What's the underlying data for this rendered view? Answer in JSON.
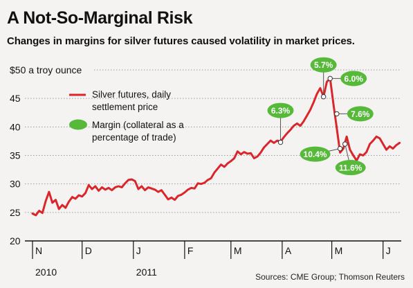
{
  "title": "A Not-So-Marginal Risk",
  "subtitle": "Changes in margins for silver futures caused volatility in market prices.",
  "source": "Sources: CME Group; Thomson Reuters",
  "colors": {
    "line": "#d9262b",
    "bubble": "#56b93a",
    "grid": "#9a9a9a",
    "background": "#f4f3f1"
  },
  "chart_data": {
    "type": "line",
    "ylabel": "$50 a troy ounce",
    "ylim": [
      20,
      50
    ],
    "yticks": [
      {
        "value": 50,
        "label": "$50 a troy ounce"
      },
      {
        "value": 45,
        "label": "45"
      },
      {
        "value": 40,
        "label": "40"
      },
      {
        "value": 35,
        "label": "35"
      },
      {
        "value": 30,
        "label": "30"
      },
      {
        "value": 25,
        "label": "25"
      },
      {
        "value": 20,
        "label": "20"
      }
    ],
    "x_range": [
      "2010-11-01",
      "2011-06-12"
    ],
    "month_ticks": [
      {
        "label": "N",
        "date": "2010-11-01"
      },
      {
        "label": "D",
        "date": "2010-12-01"
      },
      {
        "label": "J",
        "date": "2011-01-01"
      },
      {
        "label": "F",
        "date": "2011-02-01"
      },
      {
        "label": "M",
        "date": "2011-03-01"
      },
      {
        "label": "A",
        "date": "2011-04-01"
      },
      {
        "label": "M",
        "date": "2011-05-01"
      },
      {
        "label": "J",
        "date": "2011-06-01"
      }
    ],
    "year_labels": [
      {
        "label": "2010",
        "date": "2010-11-01"
      },
      {
        "label": "2011",
        "date": "2011-01-01"
      }
    ],
    "legend": [
      {
        "type": "line",
        "label_lines": [
          "Silver futures, daily",
          "settlement price"
        ]
      },
      {
        "type": "bubble",
        "label_lines": [
          "Margin (collateral as a",
          "percentage of trade)"
        ]
      }
    ],
    "series": [
      {
        "name": "Silver futures, daily settlement price",
        "points": [
          [
            "2010-11-01",
            24.8
          ],
          [
            "2010-11-03",
            24.5
          ],
          [
            "2010-11-05",
            25.3
          ],
          [
            "2010-11-07",
            24.9
          ],
          [
            "2010-11-09",
            27.0
          ],
          [
            "2010-11-11",
            28.6
          ],
          [
            "2010-11-13",
            26.7
          ],
          [
            "2010-11-15",
            27.2
          ],
          [
            "2010-11-17",
            25.6
          ],
          [
            "2010-11-19",
            26.3
          ],
          [
            "2010-11-21",
            25.8
          ],
          [
            "2010-11-23",
            26.9
          ],
          [
            "2010-11-25",
            27.7
          ],
          [
            "2010-11-27",
            27.4
          ],
          [
            "2010-11-29",
            28.0
          ],
          [
            "2010-12-01",
            27.8
          ],
          [
            "2010-12-03",
            28.4
          ],
          [
            "2010-12-05",
            29.8
          ],
          [
            "2010-12-07",
            29.1
          ],
          [
            "2010-12-09",
            29.6
          ],
          [
            "2010-12-11",
            28.8
          ],
          [
            "2010-12-13",
            29.4
          ],
          [
            "2010-12-15",
            29.0
          ],
          [
            "2010-12-17",
            29.3
          ],
          [
            "2010-12-19",
            28.9
          ],
          [
            "2010-12-21",
            29.4
          ],
          [
            "2010-12-23",
            29.6
          ],
          [
            "2010-12-25",
            29.4
          ],
          [
            "2010-12-27",
            30.1
          ],
          [
            "2010-12-29",
            30.7
          ],
          [
            "2010-12-31",
            30.8
          ],
          [
            "2011-01-02",
            30.5
          ],
          [
            "2011-01-04",
            29.1
          ],
          [
            "2011-01-06",
            29.6
          ],
          [
            "2011-01-08",
            28.9
          ],
          [
            "2011-01-10",
            29.4
          ],
          [
            "2011-01-12",
            29.2
          ],
          [
            "2011-01-14",
            29.0
          ],
          [
            "2011-01-16",
            28.6
          ],
          [
            "2011-01-18",
            28.9
          ],
          [
            "2011-01-20",
            28.1
          ],
          [
            "2011-01-22",
            27.3
          ],
          [
            "2011-01-24",
            27.6
          ],
          [
            "2011-01-26",
            27.2
          ],
          [
            "2011-01-28",
            27.9
          ],
          [
            "2011-01-30",
            28.1
          ],
          [
            "2011-02-01",
            28.5
          ],
          [
            "2011-02-03",
            29.0
          ],
          [
            "2011-02-05",
            29.3
          ],
          [
            "2011-02-07",
            29.2
          ],
          [
            "2011-02-09",
            30.1
          ],
          [
            "2011-02-11",
            30.0
          ],
          [
            "2011-02-13",
            30.2
          ],
          [
            "2011-02-15",
            30.7
          ],
          [
            "2011-02-17",
            31.0
          ],
          [
            "2011-02-19",
            32.0
          ],
          [
            "2011-02-21",
            32.7
          ],
          [
            "2011-02-23",
            33.4
          ],
          [
            "2011-02-25",
            33.0
          ],
          [
            "2011-02-27",
            33.6
          ],
          [
            "2011-03-01",
            34.0
          ],
          [
            "2011-03-03",
            34.5
          ],
          [
            "2011-03-05",
            35.7
          ],
          [
            "2011-03-07",
            35.2
          ],
          [
            "2011-03-09",
            35.6
          ],
          [
            "2011-03-11",
            35.3
          ],
          [
            "2011-03-13",
            35.4
          ],
          [
            "2011-03-15",
            34.5
          ],
          [
            "2011-03-17",
            34.8
          ],
          [
            "2011-03-19",
            35.5
          ],
          [
            "2011-03-21",
            36.4
          ],
          [
            "2011-03-23",
            37.0
          ],
          [
            "2011-03-25",
            37.6
          ],
          [
            "2011-03-27",
            37.2
          ],
          [
            "2011-03-29",
            37.6
          ],
          [
            "2011-03-31",
            37.4
          ],
          [
            "2011-04-02",
            38.2
          ],
          [
            "2011-04-04",
            38.9
          ],
          [
            "2011-04-06",
            39.5
          ],
          [
            "2011-04-08",
            40.2
          ],
          [
            "2011-04-10",
            40.6
          ],
          [
            "2011-04-12",
            40.2
          ],
          [
            "2011-04-14",
            41.0
          ],
          [
            "2011-04-16",
            42.0
          ],
          [
            "2011-04-18",
            43.0
          ],
          [
            "2011-04-20",
            44.3
          ],
          [
            "2011-04-22",
            45.8
          ],
          [
            "2011-04-24",
            46.8
          ],
          [
            "2011-04-26",
            45.3
          ],
          [
            "2011-04-28",
            47.9
          ],
          [
            "2011-04-30",
            48.5
          ],
          [
            "2011-05-02",
            44.0
          ],
          [
            "2011-05-04",
            39.8
          ],
          [
            "2011-05-06",
            35.5
          ],
          [
            "2011-05-08",
            36.2
          ],
          [
            "2011-05-10",
            38.3
          ],
          [
            "2011-05-12",
            36.0
          ],
          [
            "2011-05-14",
            35.0
          ],
          [
            "2011-05-16",
            34.1
          ],
          [
            "2011-05-18",
            35.2
          ],
          [
            "2011-05-20",
            35.0
          ],
          [
            "2011-05-22",
            35.6
          ],
          [
            "2011-05-24",
            37.0
          ],
          [
            "2011-05-26",
            37.6
          ],
          [
            "2011-05-28",
            38.3
          ],
          [
            "2011-05-30",
            38.0
          ],
          [
            "2011-06-01",
            37.0
          ],
          [
            "2011-06-03",
            36.0
          ],
          [
            "2011-06-05",
            36.6
          ],
          [
            "2011-06-07",
            36.2
          ],
          [
            "2011-06-09",
            36.8
          ],
          [
            "2011-06-11",
            37.2
          ]
        ]
      }
    ],
    "annotations": [
      {
        "label": "6.3%",
        "date": "2011-03-31",
        "value": 37.3,
        "anchor": "above"
      },
      {
        "label": "5.7%",
        "date": "2011-04-26",
        "value": 45.3,
        "anchor": "above"
      },
      {
        "label": "6.0%",
        "date": "2011-04-30",
        "value": 48.5,
        "anchor": "right"
      },
      {
        "label": "7.6%",
        "date": "2011-05-04",
        "value": 42.3,
        "anchor": "right"
      },
      {
        "label": "10.4%",
        "date": "2011-05-06",
        "value": 36.2,
        "anchor": "left"
      },
      {
        "label": "11.6%",
        "date": "2011-05-09",
        "value": 37.0,
        "anchor": "below"
      }
    ]
  }
}
